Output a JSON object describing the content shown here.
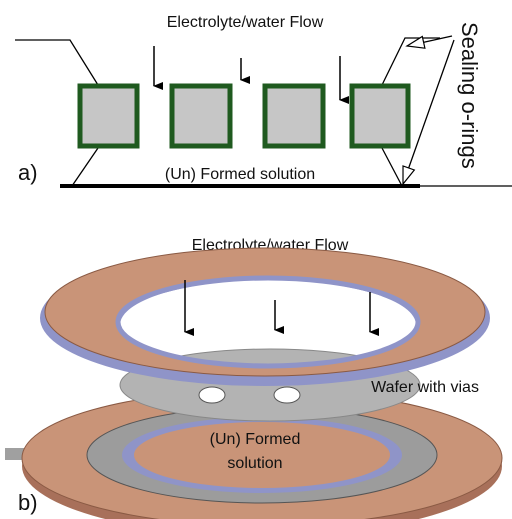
{
  "panel_a": {
    "label": "a)",
    "flow_label": "Electrolyte/water Flow",
    "seal_label": "Sealing o-rings",
    "solution_label": "(Un) Formed solution"
  },
  "panel_b": {
    "label": "b)",
    "flow_label": "Electrolyte/water Flow",
    "wafer_label": "Wafer with vias",
    "solution_lines": [
      "(Un) Formed",
      "solution"
    ]
  }
}
